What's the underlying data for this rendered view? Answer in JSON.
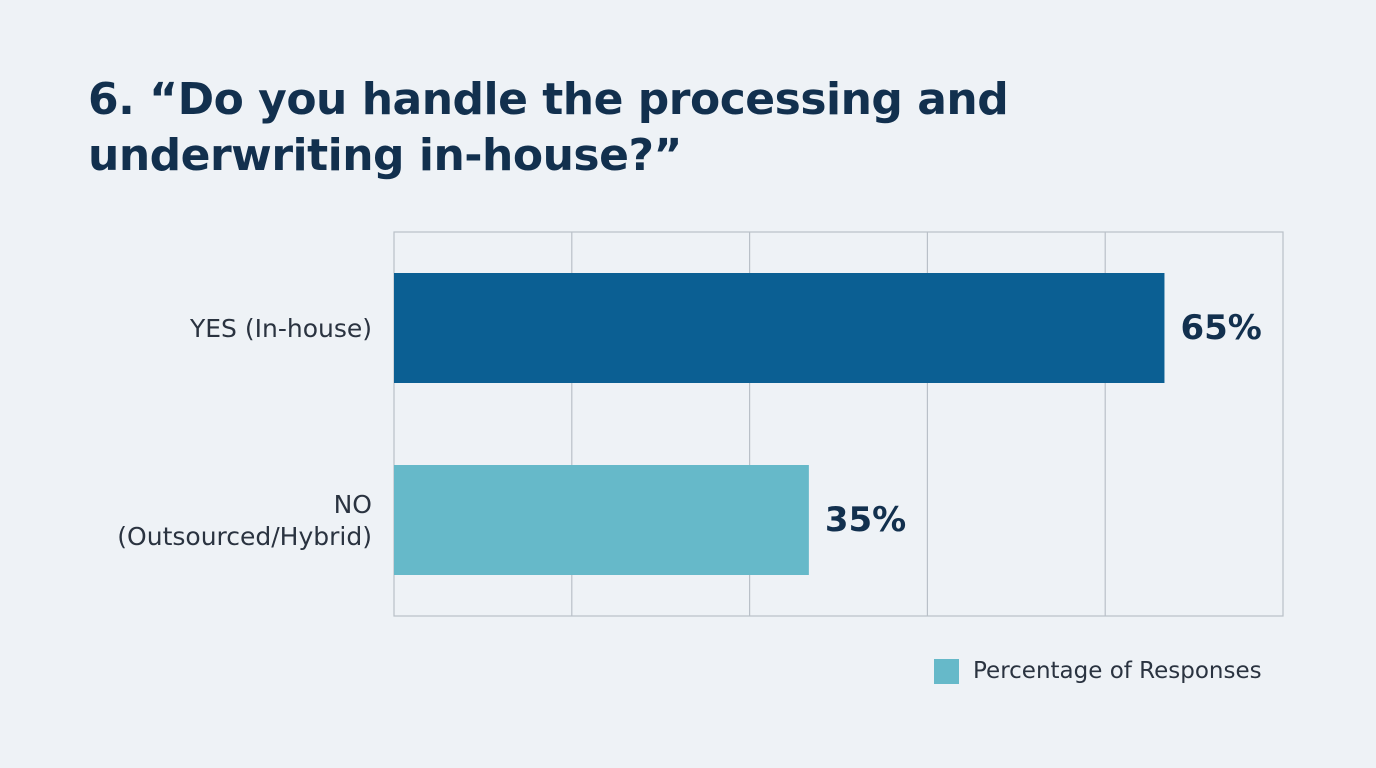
{
  "title": "6. “Do you handle the processing and\nunderwriting in-house?”",
  "chart_data": {
    "type": "bar",
    "orientation": "horizontal",
    "title": "6. “Do you handle the processing and underwriting in-house?”",
    "categories": [
      [
        "YES (In-house)"
      ],
      [
        "NO",
        "(Outsourced/Hybrid)"
      ]
    ],
    "series": [
      {
        "name": "Percentage of Responses",
        "values": [
          65,
          35
        ],
        "value_labels": [
          "65%",
          "35%"
        ]
      }
    ],
    "xlim": [
      0,
      75
    ],
    "grid": true,
    "legend": "bottom-right",
    "colors": [
      "#0b5f93",
      "#66b9c9"
    ]
  },
  "legend": {
    "label": "Percentage of Responses",
    "color": "#66b9c9"
  }
}
